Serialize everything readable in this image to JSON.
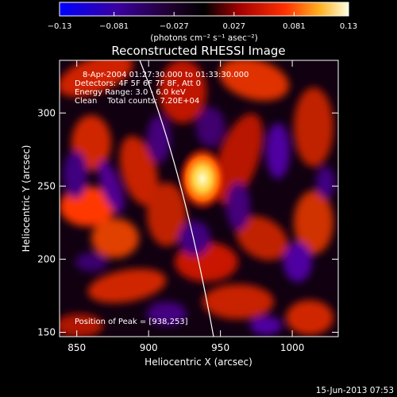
{
  "colorbar": {
    "ticks": [
      "−0.13",
      "−0.081",
      "−0.027",
      "0.027",
      "0.081",
      "0.13"
    ],
    "tick_values": [
      -0.13,
      -0.081,
      -0.027,
      0.027,
      0.081,
      0.13
    ],
    "units_label": "(photons cm⁻² s⁻¹ asec⁻²)",
    "range": [
      -0.13,
      0.13
    ]
  },
  "chart_data": {
    "type": "heatmap",
    "title": "Reconstructed RHESSI Image",
    "xlabel": "Heliocentric X (arcsec)",
    "ylabel": "Heliocentric Y (arcsec)",
    "xlim": [
      838,
      1032
    ],
    "ylim": [
      147,
      336
    ],
    "x_ticks": [
      850,
      900,
      950,
      1000
    ],
    "y_ticks": [
      150,
      200,
      250,
      300
    ],
    "peak": {
      "x": 938,
      "y": 253
    },
    "color_scale": [
      "#0000ff",
      "#500090",
      "#000000",
      "#c00000",
      "#ff8000",
      "#ffffc0"
    ]
  },
  "info": {
    "time_range": "8-Apr-2004 01:27:30.000 to 01:33:30.000",
    "detectors": "Detectors: 4F 5F 6F 7F 8F, Att 0",
    "energy_range": "Energy Range: 3.0 - 6.0 keV",
    "clean_counts": "Clean    Total counts: 7.20E+04",
    "peak_position": "Position of Peak = [938,253]"
  },
  "footer": {
    "timestamp": "15-Jun-2013 07:53"
  }
}
